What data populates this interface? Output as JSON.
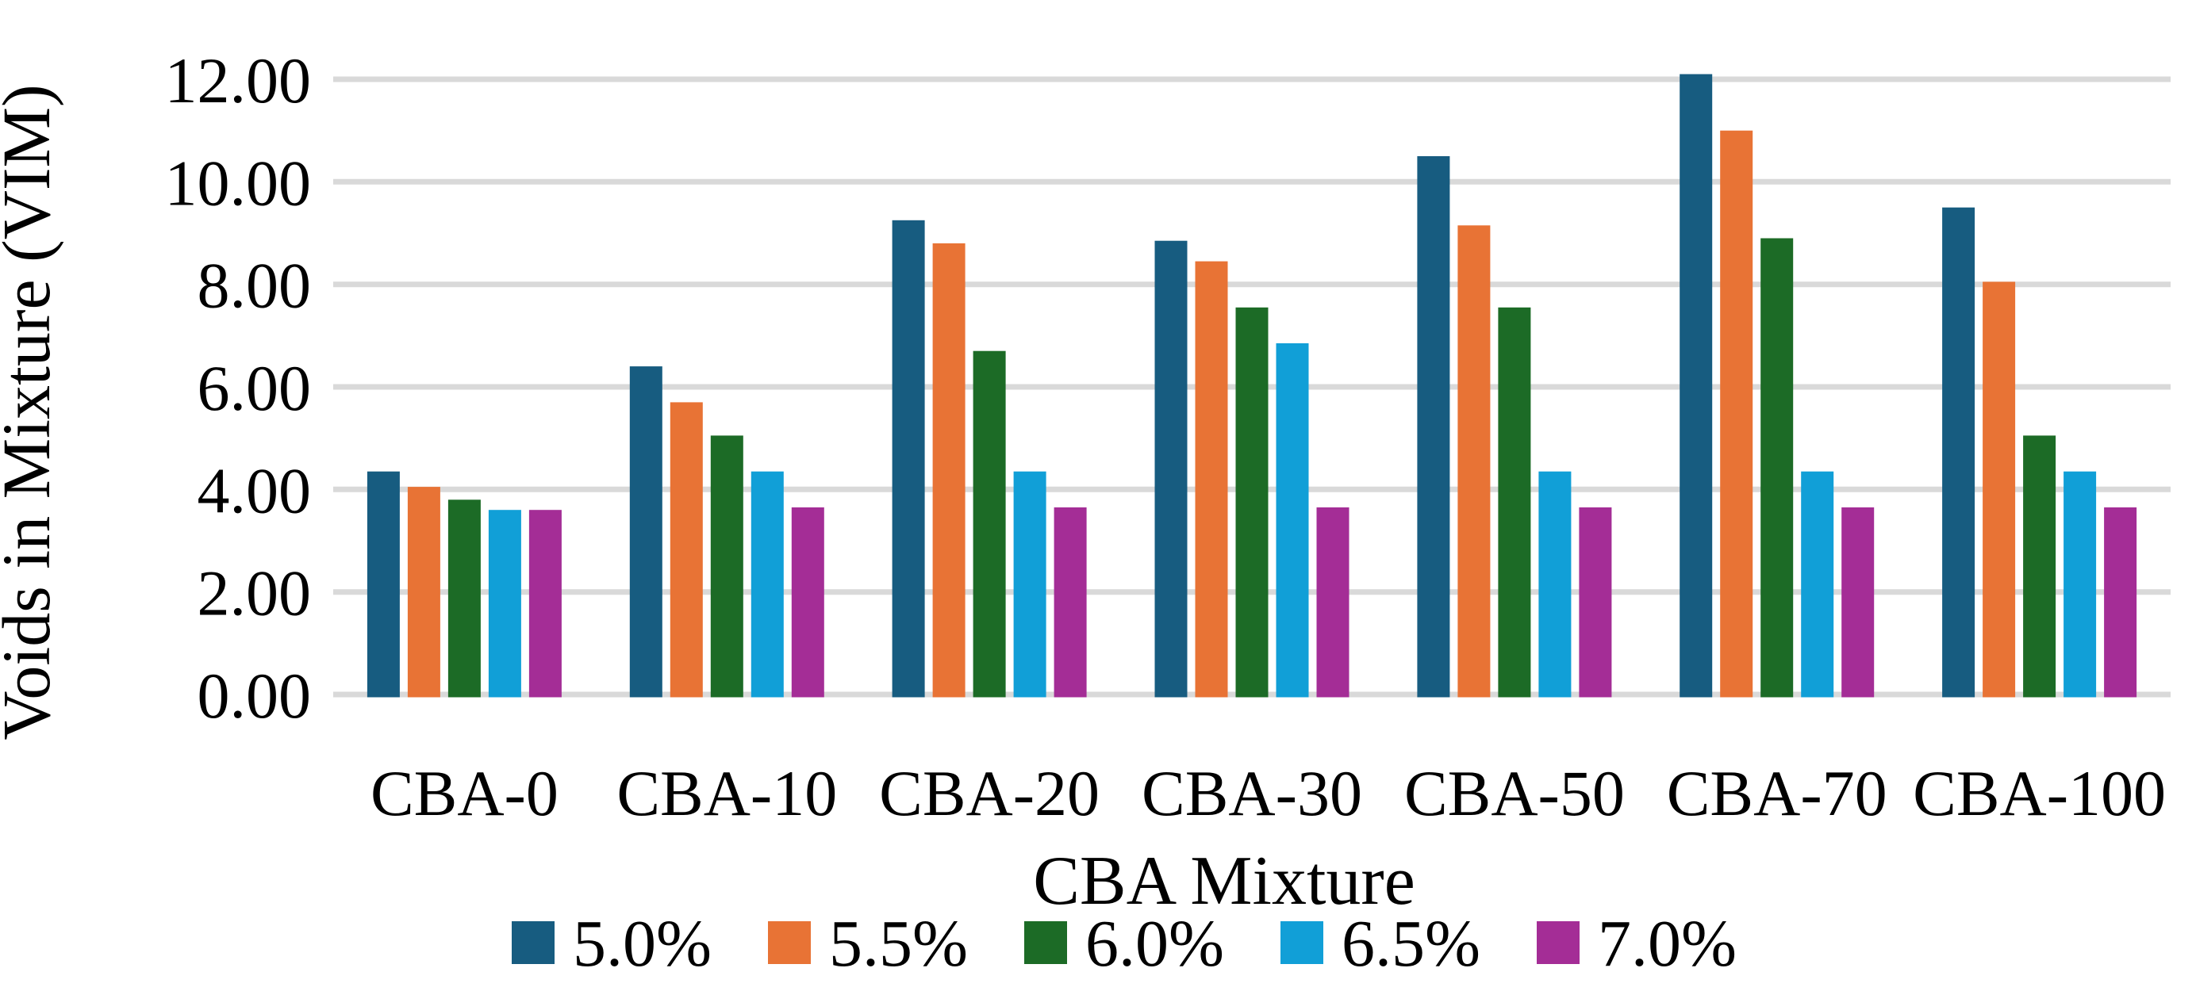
{
  "chart_data": {
    "type": "bar",
    "title": "",
    "ylabel": "Voids in Mixture (VIM)",
    "xlabel": "CBA Mixture",
    "categories": [
      "CBA-0",
      "CBA-10",
      "CBA-20",
      "CBA-30",
      "CBA-50",
      "CBA-70",
      "CBA-100"
    ],
    "series": [
      {
        "name": "5.0%",
        "color": "#175C80",
        "values": [
          4.35,
          6.4,
          9.25,
          8.85,
          10.5,
          12.1,
          9.5
        ]
      },
      {
        "name": "5.5%",
        "color": "#E87335",
        "values": [
          4.05,
          5.7,
          8.8,
          8.45,
          9.15,
          11.0,
          8.05
        ]
      },
      {
        "name": "6.0%",
        "color": "#1C6B26",
        "values": [
          3.8,
          5.05,
          6.7,
          7.55,
          7.55,
          8.9,
          5.05
        ]
      },
      {
        "name": "6.5%",
        "color": "#119FD7",
        "values": [
          3.6,
          4.35,
          4.35,
          6.85,
          4.35,
          4.35,
          4.35
        ]
      },
      {
        "name": "7.0%",
        "color": "#A42D96",
        "values": [
          3.6,
          3.65,
          3.65,
          3.65,
          3.65,
          3.65,
          3.65
        ]
      }
    ],
    "ylim": [
      0,
      12
    ],
    "y_ticks": [
      "0.00",
      "2.00",
      "4.00",
      "6.00",
      "8.00",
      "10.00",
      "12.00"
    ],
    "grid": "horizontal",
    "gridline_color": "#D9D9D9",
    "text_color": "#000000",
    "legend_position": "bottom"
  }
}
